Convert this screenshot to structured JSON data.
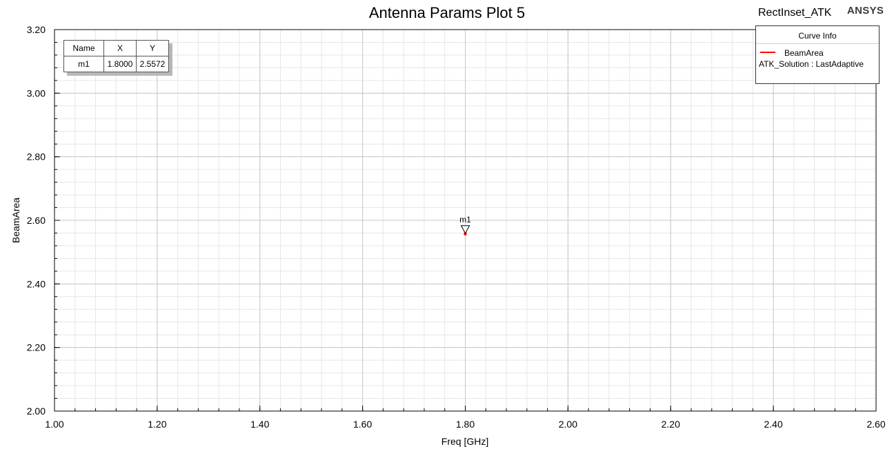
{
  "title": "Antenna Params Plot 5",
  "project": "RectInset_ATK",
  "brand": "ANSYS",
  "marker_table": {
    "headers": [
      "Name",
      "X",
      "Y"
    ],
    "rows": [
      [
        "m1",
        "1.8000",
        "2.5572"
      ]
    ]
  },
  "curve_info": {
    "header": "Curve Info",
    "curve_name": "BeamArea",
    "source": "ATK_Solution : LastAdaptive",
    "color": "#ff0000"
  },
  "chart_data": {
    "type": "scatter",
    "title": "Antenna Params Plot 5",
    "xlabel": "Freq [GHz]",
    "ylabel": "BeamArea",
    "xlim": [
      1.0,
      2.6
    ],
    "ylim": [
      2.0,
      3.2
    ],
    "x_ticks": [
      "1.00",
      "1.20",
      "1.40",
      "1.60",
      "1.80",
      "2.00",
      "2.20",
      "2.40",
      "2.60"
    ],
    "y_ticks": [
      "2.00",
      "2.20",
      "2.40",
      "2.60",
      "2.80",
      "3.00",
      "3.20"
    ],
    "grid": true,
    "legend": "top-right",
    "series": [
      {
        "name": "BeamArea",
        "color": "#ff0000",
        "x": [
          1.8
        ],
        "y": [
          2.5572
        ]
      }
    ],
    "markers": [
      {
        "name": "m1",
        "x": 1.8,
        "y": 2.5572
      }
    ]
  }
}
